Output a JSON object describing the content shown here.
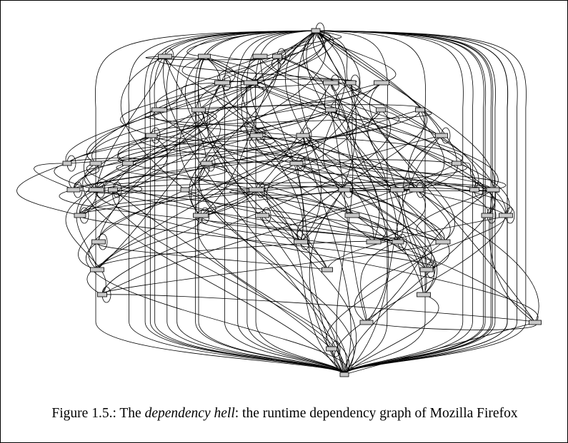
{
  "figure": {
    "caption_prefix": "Figure 1.5.: The ",
    "caption_emphasis": "dependency hell",
    "caption_suffix": ": the runtime dependency graph of Mozilla Firefox"
  },
  "colors": {
    "node_fill": "#c8c8c8",
    "edge": "#000000",
    "background": "#ffffff"
  }
}
